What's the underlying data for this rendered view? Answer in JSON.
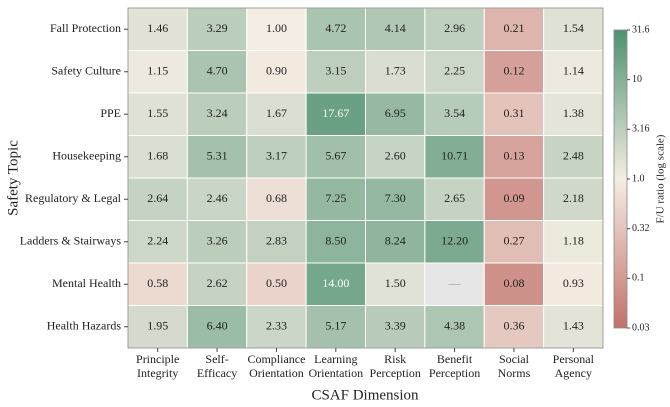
{
  "chart_data": {
    "type": "heatmap",
    "x_label": "CSAF Dimension",
    "y_label": "Safety Topic",
    "x_categories": [
      [
        "Principle",
        "Integrity"
      ],
      [
        "Self-",
        "Efficacy"
      ],
      [
        "Compliance",
        "Orientation"
      ],
      [
        "Learning",
        "Orientation"
      ],
      [
        "Risk",
        "Perception"
      ],
      [
        "Benefit",
        "Perception"
      ],
      [
        "Social",
        "Norms"
      ],
      [
        "Personal",
        "Agency"
      ]
    ],
    "y_categories": [
      "Fall Protection",
      "Safety Culture",
      "PPE",
      "Housekeeping",
      "Regulatory & Legal",
      "Ladders & Stairways",
      "Mental Health",
      "Health Hazards"
    ],
    "values": [
      [
        1.46,
        3.29,
        1.0,
        4.72,
        4.14,
        2.96,
        0.21,
        1.54
      ],
      [
        1.15,
        4.7,
        0.9,
        3.15,
        1.73,
        2.25,
        0.12,
        1.14
      ],
      [
        1.55,
        3.24,
        1.67,
        17.67,
        6.95,
        3.54,
        0.31,
        1.38
      ],
      [
        1.68,
        5.31,
        3.17,
        5.67,
        2.6,
        10.71,
        0.13,
        2.48
      ],
      [
        2.64,
        2.46,
        0.68,
        7.25,
        7.3,
        2.65,
        0.09,
        2.18
      ],
      [
        2.24,
        3.26,
        2.83,
        8.5,
        8.24,
        12.2,
        0.27,
        1.18
      ],
      [
        0.58,
        2.62,
        0.5,
        14.0,
        1.5,
        null,
        0.08,
        0.93
      ],
      [
        1.95,
        6.4,
        2.33,
        5.17,
        3.39,
        4.38,
        0.36,
        1.43
      ]
    ],
    "value_labels": [
      [
        "1.46",
        "3.29",
        "1.00",
        "4.72",
        "4.14",
        "2.96",
        "0.21",
        "1.54"
      ],
      [
        "1.15",
        "4.70",
        "0.90",
        "3.15",
        "1.73",
        "2.25",
        "0.12",
        "1.14"
      ],
      [
        "1.55",
        "3.24",
        "1.67",
        "17.67",
        "6.95",
        "3.54",
        "0.31",
        "1.38"
      ],
      [
        "1.68",
        "5.31",
        "3.17",
        "5.67",
        "2.60",
        "10.71",
        "0.13",
        "2.48"
      ],
      [
        "2.64",
        "2.46",
        "0.68",
        "7.25",
        "7.30",
        "2.65",
        "0.09",
        "2.18"
      ],
      [
        "2.24",
        "3.26",
        "2.83",
        "8.50",
        "8.24",
        "12.20",
        "0.27",
        "1.18"
      ],
      [
        "0.58",
        "2.62",
        "0.50",
        "14.00",
        "1.50",
        "—",
        "0.08",
        "0.93"
      ],
      [
        "1.95",
        "6.40",
        "2.33",
        "5.17",
        "3.39",
        "4.38",
        "0.36",
        "1.43"
      ]
    ],
    "colorbar_label": "F/U ratio (log scale)",
    "clim": [
      0.0316,
      31.6
    ],
    "log_scale": true,
    "colormap": [
      "#c2706a",
      "#f4ede3",
      "#4e9170"
    ],
    "missing_color": "#e6e6e6",
    "cticks": [
      31.6,
      10,
      {
        "value": 3.16,
        "label": "3.16"
      },
      {
        "value": 1,
        "label": "1.0"
      },
      {
        "value": 0.316,
        "label": "0.32"
      },
      0.1,
      {
        "value": 0.0316,
        "label": "0.03"
      }
    ]
  }
}
